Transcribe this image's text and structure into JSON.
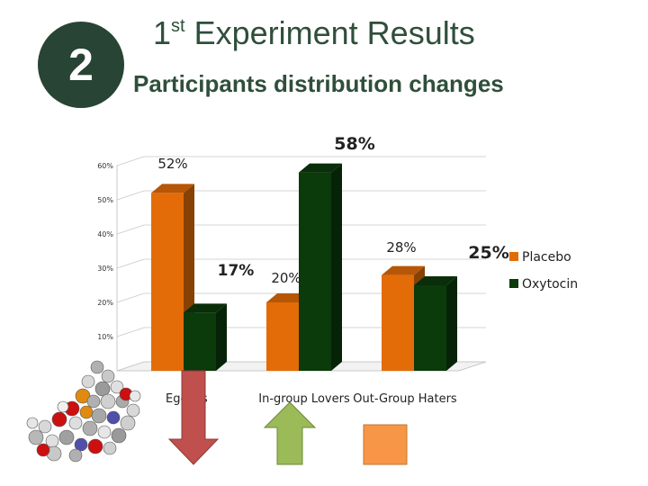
{
  "badge": "2",
  "title_main": "Experiment Results",
  "title_prefix": "1",
  "title_sup": "st",
  "subtitle": "Participants distribution changes",
  "chart_data": {
    "type": "bar",
    "categories": [
      "Egoists",
      "In-group Lovers",
      "Out-Group Haters"
    ],
    "series": [
      {
        "name": "Placebo",
        "values": [
          52,
          20,
          28
        ],
        "color": "#e36c09"
      },
      {
        "name": "Oxytocin",
        "values": [
          17,
          58,
          25
        ],
        "color": "#0b3a0b"
      }
    ],
    "data_labels": [
      [
        "52%",
        "17%"
      ],
      [
        "20%",
        "58%"
      ],
      [
        "28%",
        "25%"
      ]
    ],
    "yticks": [
      "10%",
      "20%",
      "30%",
      "40%",
      "50%",
      "60%"
    ],
    "ylim": [
      0,
      60
    ],
    "legend": "right",
    "grid": true
  },
  "arrows": [
    {
      "direction": "down",
      "color": "#c0504d"
    },
    {
      "direction": "up",
      "color": "#9bbb59"
    },
    {
      "direction": "none",
      "color": "#f79646"
    }
  ]
}
